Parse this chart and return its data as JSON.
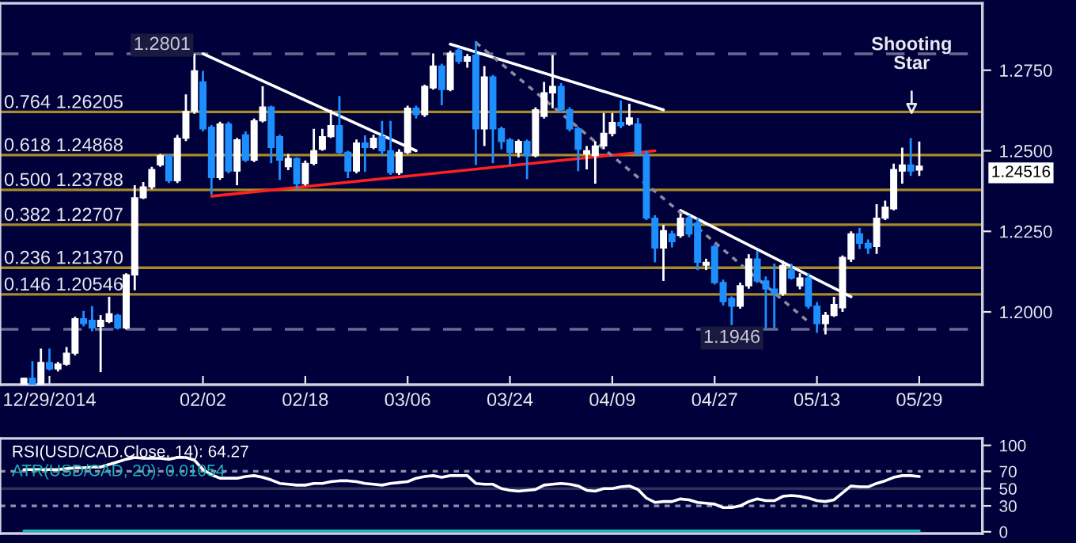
{
  "chart_data": [
    {
      "type": "candlestick",
      "categories": [
        null,
        null,
        null,
        "12/29/2014",
        null,
        null,
        null,
        null,
        null,
        null,
        null,
        null,
        null,
        null,
        null,
        null,
        null,
        null,
        null,
        null,
        null,
        "02/02",
        null,
        null,
        null,
        null,
        null,
        null,
        null,
        null,
        null,
        null,
        null,
        "02/18",
        null,
        null,
        null,
        null,
        null,
        null,
        null,
        null,
        null,
        null,
        null,
        "03/06",
        null,
        null,
        null,
        null,
        null,
        null,
        null,
        null,
        null,
        null,
        null,
        "03/24",
        null,
        null,
        null,
        null,
        null,
        null,
        null,
        null,
        null,
        null,
        null,
        "04/09",
        null,
        null,
        null,
        null,
        null,
        null,
        null,
        null,
        null,
        null,
        null,
        "04/27",
        null,
        null,
        null,
        null,
        null,
        null,
        null,
        null,
        null,
        null,
        null,
        "05/13",
        null,
        null,
        null,
        null,
        null,
        null,
        null,
        null,
        null,
        null,
        null,
        "05/29"
      ],
      "ohlc": [
        [
          1.1776,
          1.1796,
          1.1775,
          1.1794
        ],
        [
          1.1794,
          1.1847,
          1.1775,
          1.1776
        ],
        [
          1.1776,
          1.1886,
          1.1775,
          1.1843
        ],
        [
          1.1843,
          1.1886,
          1.1818,
          1.1823
        ],
        [
          1.1823,
          1.1845,
          1.1815,
          1.1838
        ],
        [
          1.1838,
          1.1891,
          1.1833,
          1.1872
        ],
        [
          1.1872,
          1.1985,
          1.1865,
          1.1979
        ],
        [
          1.1979,
          1.2003,
          1.1955,
          1.1964
        ],
        [
          1.1974,
          1.2018,
          1.194,
          1.195
        ],
        [
          1.1955,
          1.199,
          1.1813,
          1.1974
        ],
        [
          1.197,
          1.2047,
          1.1965,
          1.1994
        ],
        [
          1.1989,
          1.1994,
          1.1945,
          1.195
        ],
        [
          1.195,
          1.212,
          1.1945,
          1.2115
        ],
        [
          1.2115,
          1.2393,
          1.2067,
          1.2354
        ],
        [
          1.2354,
          1.2403,
          1.235,
          1.2388
        ],
        [
          1.2388,
          1.245,
          1.238,
          1.2442
        ],
        [
          1.2456,
          1.249,
          1.245,
          1.2485
        ],
        [
          1.2485,
          1.249,
          1.24,
          1.2407
        ],
        [
          1.2407,
          1.2549,
          1.24,
          1.2539
        ],
        [
          1.2539,
          1.2675,
          1.253,
          1.2622
        ],
        [
          1.2622,
          1.2801,
          1.2615,
          1.2748
        ],
        [
          1.2714,
          1.2748,
          1.256,
          1.2568
        ],
        [
          1.2573,
          1.258,
          1.2364,
          1.2417
        ],
        [
          1.2417,
          1.259,
          1.241,
          1.2583
        ],
        [
          1.2583,
          1.259,
          1.243,
          1.2437
        ],
        [
          1.2437,
          1.254,
          1.2393,
          1.2534
        ],
        [
          1.2549,
          1.256,
          1.2465,
          1.2471
        ],
        [
          1.2471,
          1.26,
          1.2465,
          1.2593
        ],
        [
          1.2593,
          1.27,
          1.2588,
          1.2636
        ],
        [
          1.2636,
          1.264,
          1.2461,
          1.251
        ],
        [
          1.2544,
          1.255,
          1.241,
          1.2471
        ],
        [
          1.2451,
          1.249,
          1.244,
          1.2476
        ],
        [
          1.2476,
          1.248,
          1.238,
          1.2398
        ],
        [
          1.2398,
          1.247,
          1.2392,
          1.2461
        ],
        [
          1.2461,
          1.2568,
          1.2455,
          1.25
        ],
        [
          1.2505,
          1.2568,
          1.25,
          1.2544
        ],
        [
          1.2544,
          1.2627,
          1.254,
          1.2578
        ],
        [
          1.2578,
          1.267,
          1.249,
          1.2495
        ],
        [
          1.2495,
          1.25,
          1.2415,
          1.2437
        ],
        [
          1.2437,
          1.2535,
          1.243,
          1.2524
        ],
        [
          1.2524,
          1.2548,
          1.2435,
          1.251
        ],
        [
          1.251,
          1.255,
          1.2505,
          1.2539
        ],
        [
          1.2544,
          1.2593,
          1.2485,
          1.25
        ],
        [
          1.25,
          1.2593,
          1.2425,
          1.2432
        ],
        [
          1.2432,
          1.2505,
          1.2425,
          1.2495
        ],
        [
          1.2495,
          1.264,
          1.249,
          1.2632
        ],
        [
          1.2632,
          1.264,
          1.26,
          1.2612
        ],
        [
          1.2612,
          1.2705,
          1.2605,
          1.27
        ],
        [
          1.2695,
          1.2802,
          1.269,
          1.2763
        ],
        [
          1.2763,
          1.277,
          1.2641,
          1.269
        ],
        [
          1.269,
          1.281,
          1.2685,
          1.2802
        ],
        [
          1.2812,
          1.282,
          1.277,
          1.2778
        ],
        [
          1.2778,
          1.28,
          1.2758,
          1.2792
        ],
        [
          1.2797,
          1.2841,
          1.2456,
          1.2568
        ],
        [
          1.2568,
          1.2763,
          1.2515,
          1.2729
        ],
        [
          1.2729,
          1.2735,
          1.2461,
          1.2568
        ],
        [
          1.2568,
          1.2575,
          1.2505,
          1.2529
        ],
        [
          1.2534,
          1.254,
          1.2456,
          1.2495
        ],
        [
          1.2495,
          1.2535,
          1.248,
          1.2529
        ],
        [
          1.2529,
          1.2535,
          1.2412,
          1.2485
        ],
        [
          1.2485,
          1.2635,
          1.248,
          1.2627
        ],
        [
          1.2607,
          1.2714,
          1.26,
          1.268
        ],
        [
          1.268,
          1.2797,
          1.2632,
          1.27
        ],
        [
          1.27,
          1.271,
          1.262,
          1.2627
        ],
        [
          1.2627,
          1.2635,
          1.256,
          1.2568
        ],
        [
          1.2568,
          1.2575,
          1.2437,
          1.2505
        ],
        [
          1.249,
          1.2515,
          1.2442,
          1.25
        ],
        [
          1.2485,
          1.253,
          1.2398,
          1.2515
        ],
        [
          1.2515,
          1.2617,
          1.2505,
          1.2554
        ],
        [
          1.2554,
          1.2617,
          1.2545,
          1.2588
        ],
        [
          1.2588,
          1.2656,
          1.257,
          1.2578
        ],
        [
          1.2583,
          1.2646,
          1.2578,
          1.2602
        ],
        [
          1.2583,
          1.2602,
          1.2485,
          1.249
        ],
        [
          1.249,
          1.25,
          1.2285,
          1.2291
        ],
        [
          1.2291,
          1.23,
          1.2154,
          1.2198
        ],
        [
          1.2198,
          1.227,
          1.2096,
          1.2252
        ],
        [
          1.2242,
          1.2252,
          1.22,
          1.2218
        ],
        [
          1.2237,
          1.2305,
          1.223,
          1.2291
        ],
        [
          1.2291,
          1.23,
          1.2232,
          1.2242
        ],
        [
          1.2276,
          1.2291,
          1.213,
          1.2154
        ],
        [
          1.2145,
          1.2165,
          1.213,
          1.2154
        ],
        [
          1.2203,
          1.221,
          1.2085,
          1.2091
        ],
        [
          1.2091,
          1.21,
          1.202,
          1.2032
        ],
        [
          1.2042,
          1.2048,
          1.1959,
          1.2018
        ],
        [
          1.2018,
          1.2091,
          1.201,
          1.2081
        ],
        [
          1.2081,
          1.2179,
          1.2072,
          1.2164
        ],
        [
          1.2164,
          1.2189,
          1.209,
          1.2096
        ],
        [
          1.2096,
          1.211,
          1.195,
          1.2071
        ],
        [
          1.2071,
          1.215,
          1.195,
          1.2057
        ],
        [
          1.2057,
          1.2159,
          1.205,
          1.2144
        ],
        [
          1.213,
          1.215,
          1.21,
          1.2105
        ],
        [
          1.2081,
          1.212,
          1.207,
          1.2105
        ],
        [
          1.2105,
          1.212,
          1.201,
          1.2018
        ],
        [
          1.2018,
          1.203,
          1.1935,
          1.1964
        ],
        [
          1.1964,
          1.2,
          1.193,
          1.1989
        ],
        [
          1.1989,
          1.2047,
          1.1985,
          1.2023
        ],
        [
          1.2013,
          1.2175,
          1.2,
          1.2169
        ],
        [
          1.2164,
          1.225,
          1.2155,
          1.2242
        ],
        [
          1.2242,
          1.2261,
          1.2195,
          1.2213
        ],
        [
          1.2213,
          1.2225,
          1.218,
          1.2198
        ],
        [
          1.2203,
          1.2334,
          1.218,
          1.2291
        ],
        [
          1.2291,
          1.2345,
          1.2285,
          1.2325
        ],
        [
          1.232,
          1.246,
          1.2315,
          1.2442
        ],
        [
          1.2437,
          1.251,
          1.2398,
          1.2456
        ],
        [
          1.2456,
          1.2539,
          1.2422,
          1.2437
        ],
        [
          1.244,
          1.2529,
          1.2422,
          1.2452
        ]
      ],
      "series": [
        {
          "type": "line",
          "values": [
            null,
            null,
            null,
            null,
            null,
            null,
            null,
            null,
            null,
            null,
            null,
            null,
            null,
            null,
            null,
            null,
            null,
            null,
            null,
            null,
            null,
            1.2801,
            null,
            null,
            null,
            null,
            null,
            null,
            null,
            null,
            null,
            null,
            null,
            null,
            null,
            null,
            null,
            null,
            null,
            null,
            null,
            null,
            null,
            null,
            null,
            null,
            1.25,
            null,
            null,
            null,
            null,
            null,
            null,
            null,
            null,
            null,
            null,
            null,
            null,
            null,
            null,
            null,
            null,
            null,
            null,
            null,
            null,
            null,
            null,
            null,
            null,
            null,
            null,
            null,
            null,
            null,
            null,
            null,
            null,
            null,
            null,
            null,
            null,
            null,
            null,
            null,
            null,
            null,
            null,
            null,
            null,
            null,
            null,
            null,
            null,
            null,
            null,
            null,
            null,
            null,
            null,
            null,
            null,
            null,
            null,
            null
          ],
          "color": "#ffffff",
          "line_style": "solid"
        },
        {
          "type": "line",
          "values": [
            null,
            null,
            null,
            null,
            null,
            null,
            null,
            null,
            null,
            null,
            null,
            null,
            null,
            null,
            null,
            null,
            null,
            null,
            null,
            null,
            null,
            null,
            null,
            null,
            null,
            null,
            null,
            null,
            null,
            null,
            null,
            null,
            null,
            null,
            null,
            null,
            null,
            null,
            null,
            null,
            null,
            null,
            null,
            null,
            null,
            null,
            null,
            null,
            null,
            null,
            1.2831,
            null,
            null,
            null,
            null,
            null,
            null,
            null,
            null,
            null,
            null,
            null,
            null,
            null,
            null,
            null,
            null,
            null,
            null,
            null,
            null,
            null,
            null,
            null,
            null,
            1.2627,
            null,
            null,
            null,
            null,
            null,
            null,
            null,
            null,
            null,
            null,
            null,
            null,
            null,
            null,
            null,
            null,
            null,
            null,
            null,
            null,
            null,
            null,
            null,
            null,
            null,
            null,
            null,
            null,
            null,
            null
          ],
          "color": "#ffffff",
          "line_style": "solid"
        },
        {
          "type": "line",
          "values": [
            null,
            null,
            null,
            null,
            null,
            null,
            null,
            null,
            null,
            null,
            null,
            null,
            null,
            null,
            null,
            null,
            null,
            null,
            null,
            null,
            null,
            null,
            null,
            null,
            null,
            null,
            null,
            null,
            null,
            null,
            null,
            null,
            null,
            null,
            null,
            null,
            null,
            null,
            null,
            null,
            null,
            null,
            null,
            null,
            null,
            null,
            null,
            null,
            null,
            null,
            null,
            null,
            null,
            null,
            null,
            null,
            null,
            null,
            null,
            null,
            null,
            null,
            null,
            null,
            null,
            null,
            null,
            null,
            null,
            null,
            null,
            null,
            null,
            null,
            null,
            null,
            null,
            1.2315,
            null,
            null,
            null,
            null,
            null,
            null,
            null,
            null,
            null,
            null,
            null,
            null,
            null,
            null,
            null,
            null,
            null,
            null,
            null,
            1.2047,
            null,
            null,
            null,
            null,
            null,
            null,
            null,
            null
          ],
          "color": "#ffffff",
          "line_style": "solid"
        },
        {
          "type": "line",
          "values": [
            null,
            null,
            null,
            null,
            null,
            null,
            null,
            null,
            null,
            null,
            null,
            null,
            null,
            null,
            null,
            null,
            null,
            null,
            null,
            null,
            null,
            null,
            1.2359,
            null,
            null,
            null,
            null,
            null,
            null,
            null,
            null,
            null,
            null,
            null,
            null,
            null,
            null,
            null,
            null,
            null,
            null,
            null,
            null,
            null,
            null,
            null,
            null,
            null,
            null,
            null,
            null,
            null,
            null,
            null,
            null,
            null,
            null,
            null,
            null,
            null,
            null,
            null,
            null,
            null,
            null,
            null,
            null,
            null,
            null,
            null,
            null,
            null,
            null,
            null,
            1.25,
            null,
            null,
            null,
            null,
            null,
            null,
            null,
            null,
            null,
            null,
            null,
            null,
            null,
            null,
            null,
            null,
            null,
            null,
            null,
            null,
            null,
            null,
            null,
            null,
            null,
            null,
            null,
            null,
            null,
            null,
            null
          ],
          "color": "#ff2020",
          "line_style": "solid"
        },
        {
          "type": "line",
          "values": [
            null,
            null,
            null,
            null,
            null,
            null,
            null,
            null,
            null,
            null,
            null,
            null,
            null,
            null,
            null,
            null,
            null,
            null,
            null,
            null,
            null,
            null,
            null,
            null,
            null,
            null,
            null,
            null,
            null,
            null,
            null,
            null,
            null,
            null,
            null,
            null,
            null,
            null,
            null,
            null,
            null,
            null,
            null,
            null,
            null,
            null,
            null,
            null,
            null,
            null,
            null,
            null,
            null,
            1.2836,
            null,
            null,
            null,
            null,
            null,
            null,
            null,
            null,
            null,
            null,
            null,
            null,
            null,
            null,
            null,
            null,
            null,
            null,
            null,
            null,
            null,
            null,
            null,
            null,
            1.2286,
            null,
            null,
            null,
            null,
            null,
            null,
            null,
            null,
            null,
            null,
            null,
            null,
            null,
            null,
            null,
            null,
            null,
            null,
            null,
            null,
            null,
            null,
            null,
            null,
            null,
            null,
            null
          ],
          "color": "#8a8aa0",
          "line_style": "dotted"
        },
        {
          "type": "line",
          "values": [
            null,
            null,
            null,
            null,
            null,
            null,
            null,
            null,
            null,
            null,
            null,
            null,
            null,
            null,
            null,
            null,
            null,
            null,
            null,
            null,
            null,
            null,
            null,
            null,
            null,
            null,
            null,
            null,
            null,
            null,
            null,
            null,
            null,
            null,
            null,
            null,
            null,
            null,
            null,
            null,
            null,
            null,
            null,
            null,
            null,
            null,
            null,
            null,
            null,
            null,
            null,
            null,
            null,
            null,
            null,
            null,
            null,
            null,
            null,
            null,
            null,
            null,
            null,
            null,
            null,
            null,
            null,
            null,
            null,
            null,
            null,
            null,
            null,
            null,
            null,
            null,
            null,
            null,
            null,
            1.2261,
            null,
            null,
            null,
            null,
            null,
            null,
            null,
            null,
            null,
            null,
            null,
            null,
            1.1969,
            null,
            null,
            null,
            null,
            null,
            null,
            null,
            null,
            null,
            null,
            null,
            null,
            null
          ],
          "color": "#8a8aa0",
          "line_style": "dotted"
        }
      ],
      "ylim": [
        1.1774,
        1.2958
      ],
      "yticks": [
        {
          "value": 1.2,
          "label": "1.2000"
        },
        {
          "value": 1.225,
          "label": "1.2250"
        },
        {
          "value": 1.25,
          "label": "1.2500"
        },
        {
          "value": 1.275,
          "label": "1.2750"
        }
      ],
      "ref_lines": [
        {
          "axis": "y",
          "value": 1.26205,
          "label": "0.764 1.26205",
          "color": "#a88a28"
        },
        {
          "axis": "y",
          "value": 1.24868,
          "label": "0.618 1.24868",
          "color": "#a88a28"
        },
        {
          "axis": "y",
          "value": 1.23788,
          "label": "0.500 1.23788",
          "color": "#a88a28"
        },
        {
          "axis": "y",
          "value": 1.22707,
          "label": "0.382 1.22707",
          "color": "#a88a28"
        },
        {
          "axis": "y",
          "value": 1.2137,
          "label": "0.236 1.21370",
          "color": "#a88a28"
        },
        {
          "axis": "y",
          "value": 1.20546,
          "label": "0.146 1.20546",
          "color": "#a88a28"
        },
        {
          "axis": "y",
          "value": 1.2801,
          "label": "1.2801",
          "color": "#6a6a90",
          "line_style": "dashed"
        },
        {
          "axis": "y",
          "value": 1.1946,
          "label": "1.1946",
          "color": "#6a6a90",
          "line_style": "dashed"
        }
      ],
      "annotations": [
        "Shooting Star",
        "1.24516"
      ],
      "grid": false
    },
    {
      "type": "line",
      "categories": [
        null,
        null,
        null,
        null,
        null,
        null,
        null,
        null,
        null,
        null,
        null,
        null,
        null,
        null,
        null,
        null,
        null,
        null,
        null,
        null,
        null,
        null,
        null,
        null,
        null,
        null,
        null,
        null,
        null,
        null,
        null,
        null,
        null,
        null,
        null,
        null,
        null,
        null,
        null,
        null,
        null,
        null,
        null,
        null,
        null,
        null,
        null,
        null,
        null,
        null,
        null,
        null,
        null,
        null,
        null,
        null,
        null,
        null,
        null,
        null,
        null,
        null,
        null,
        null,
        null,
        null,
        null,
        null,
        null,
        null,
        null,
        null,
        null,
        null,
        null,
        null,
        null,
        null,
        null,
        null,
        null,
        null,
        null,
        null,
        null,
        null,
        null,
        null,
        null,
        null,
        null,
        null,
        null,
        null,
        null,
        null,
        null,
        null,
        null,
        null,
        null,
        null,
        null,
        null,
        null,
        null
      ],
      "series": [
        {
          "name": "RSI(USD/CAD.Close, 14): 64.27",
          "color": "#ffffff",
          "values": [
            72,
            72,
            72,
            72,
            72,
            73,
            74,
            74,
            75,
            75,
            78,
            81,
            84,
            86,
            85,
            85,
            85,
            84,
            86,
            86,
            83,
            72,
            66,
            62,
            62,
            62,
            64,
            65,
            63,
            60,
            56,
            55,
            54,
            54,
            56,
            56,
            58,
            59,
            59,
            58,
            56,
            55,
            54,
            56,
            57,
            58,
            62,
            64,
            65,
            63,
            65,
            65,
            65,
            56,
            55,
            55,
            50,
            48,
            47,
            48,
            49,
            54,
            55,
            56,
            55,
            53,
            48,
            47,
            50,
            50,
            52,
            53,
            49,
            39,
            34,
            35,
            35,
            38,
            37,
            34,
            33,
            32,
            28,
            28,
            30,
            35,
            38,
            36,
            36,
            41,
            42,
            41,
            39,
            36,
            35,
            37,
            45,
            53,
            52,
            52,
            56,
            59,
            63,
            65,
            65,
            64
          ]
        },
        {
          "name": "ATR(USD/CAD, 20): 0.01054",
          "color": "#1fb5b5",
          "values": [
            1,
            1,
            1,
            1,
            1,
            1,
            1,
            1,
            1,
            1,
            1,
            1,
            1,
            1,
            1,
            1,
            1,
            1,
            1,
            1,
            1,
            1,
            1,
            1,
            1,
            1,
            1,
            1,
            1,
            1,
            1,
            1,
            1,
            1,
            1,
            1,
            1,
            1,
            1,
            1,
            1,
            1,
            1,
            1,
            1,
            1,
            1,
            1,
            1,
            1,
            1,
            1,
            1,
            1,
            1,
            1,
            1,
            1,
            1,
            1,
            1,
            1,
            1,
            1,
            1,
            1,
            1,
            1,
            1,
            1,
            1,
            1,
            1,
            1,
            1,
            1,
            1,
            1,
            1,
            1,
            1,
            1,
            1,
            1,
            1,
            1,
            1,
            1,
            1,
            1,
            1,
            1,
            1,
            1,
            1,
            1,
            1,
            1,
            1,
            1,
            1,
            1,
            1,
            1,
            1,
            1
          ]
        }
      ],
      "ylim": [
        -2,
        108
      ],
      "yticks": [
        0,
        30,
        50,
        70,
        100
      ],
      "ref_lines": [
        {
          "axis": "y",
          "value": 70,
          "color": "#9090a8",
          "line_style": "dotted"
        },
        {
          "axis": "y",
          "value": 50,
          "color": "#30305a",
          "line_style": "solid"
        },
        {
          "axis": "y",
          "value": 30,
          "color": "#9090a8",
          "line_style": "dotted"
        }
      ],
      "tick_labels": "y",
      "legend": false,
      "grid": false
    }
  ]
}
